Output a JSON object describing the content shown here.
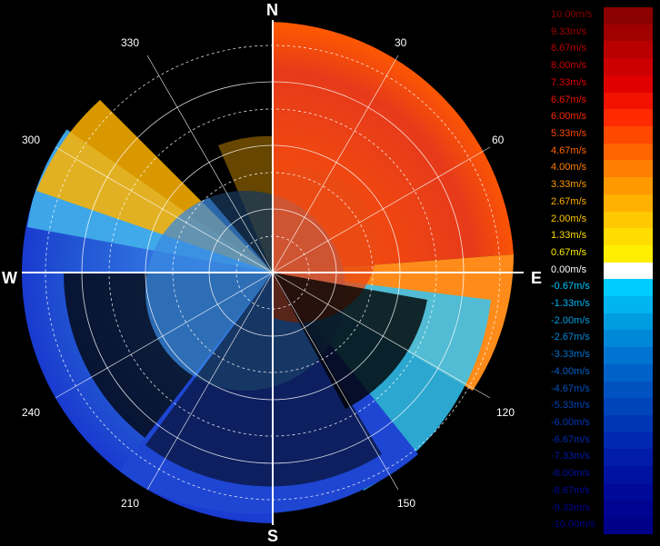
{
  "compass": {
    "north": "N",
    "south": "S",
    "east": "E",
    "west": "W"
  },
  "azimuth_labels": [
    "30",
    "60",
    "120",
    "150",
    "210",
    "240",
    "300",
    "330"
  ],
  "legend": {
    "title": "",
    "items": [
      {
        "label": "10.00m/s",
        "color": "#8b0000"
      },
      {
        "label": "9.33m/s",
        "color": "#a00000"
      },
      {
        "label": "8.67m/s",
        "color": "#b80000"
      },
      {
        "label": "8.00m/s",
        "color": "#cc0000"
      },
      {
        "label": "7.33m/s",
        "color": "#e00000"
      },
      {
        "label": "6.67m/s",
        "color": "#f21200"
      },
      {
        "label": "6.00m/s",
        "color": "#ff2a00"
      },
      {
        "label": "5.33m/s",
        "color": "#ff4800"
      },
      {
        "label": "4.67m/s",
        "color": "#ff6400"
      },
      {
        "label": "4.00m/s",
        "color": "#ff7f00"
      },
      {
        "label": "3.33m/s",
        "color": "#ff9900"
      },
      {
        "label": "2.67m/s",
        "color": "#ffb000"
      },
      {
        "label": "2.00m/s",
        "color": "#ffc800"
      },
      {
        "label": "1.33m/s",
        "color": "#ffdd00"
      },
      {
        "label": "0.67m/s",
        "color": "#ffee00"
      },
      {
        "label": "0.00m/s",
        "color": "#ffffff"
      },
      {
        "label": "-0.67m/s",
        "color": "#00ccff"
      },
      {
        "label": "-1.33m/s",
        "color": "#00b4f0"
      },
      {
        "label": "-2.00m/s",
        "color": "#009ce0"
      },
      {
        "label": "-2.67m/s",
        "color": "#0088d8"
      },
      {
        "label": "-3.33m/s",
        "color": "#0074d0"
      },
      {
        "label": "-4.00m/s",
        "color": "#0062c8"
      },
      {
        "label": "-4.67m/s",
        "color": "#0052c0"
      },
      {
        "label": "-5.33m/s",
        "color": "#0044ba"
      },
      {
        "label": "-6.00m/s",
        "color": "#0036b4"
      },
      {
        "label": "-6.67m/s",
        "color": "#0028b0"
      },
      {
        "label": "-7.33m/s",
        "color": "#001ca8"
      },
      {
        "label": "-8.00m/s",
        "color": "#0012a0"
      },
      {
        "label": "-8.67m/s",
        "color": "#000a98"
      },
      {
        "label": "-9.33m/s",
        "color": "#000490"
      },
      {
        "label": "-10.00m/s",
        "color": "#000088"
      }
    ]
  }
}
